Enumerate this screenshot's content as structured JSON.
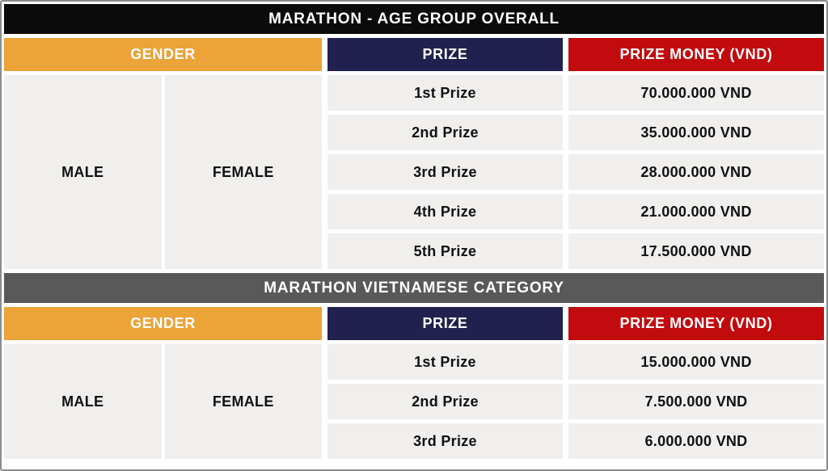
{
  "chart_data": [
    {
      "type": "table",
      "title": "MARATHON - AGE GROUP OVERALL",
      "headers": {
        "gender": "GENDER",
        "prize": "PRIZE",
        "money": "PRIZE MONEY (VND)"
      },
      "genders": {
        "male": "MALE",
        "female": "FEMALE"
      },
      "rows": [
        {
          "prize": "1st Prize",
          "money": "70.000.000 VND"
        },
        {
          "prize": "2nd Prize",
          "money": "35.000.000 VND"
        },
        {
          "prize": "3rd Prize",
          "money": "28.000.000 VND"
        },
        {
          "prize": "4th Prize",
          "money": "21.000.000 VND"
        },
        {
          "prize": "5th Prize",
          "money": "17.500.000 VND"
        }
      ]
    },
    {
      "type": "table",
      "title": "MARATHON VIETNAMESE CATEGORY",
      "headers": {
        "gender": "GENDER",
        "prize": "PRIZE",
        "money": "PRIZE MONEY (VND)"
      },
      "genders": {
        "male": "MALE",
        "female": "FEMALE"
      },
      "rows": [
        {
          "prize": "1st Prize",
          "money": "15.000.000 VND"
        },
        {
          "prize": "2nd Prize",
          "money": "7.500.000 VND"
        },
        {
          "prize": "3rd Prize",
          "money": "6.000.000 VND"
        }
      ]
    }
  ],
  "colors": {
    "section1_header_bg": "#0b0b0b",
    "section2_header_bg": "#595959",
    "gender_header_bg": "#eca338",
    "prize_header_bg": "#20214e",
    "money_header_bg": "#c20b0e",
    "cell_bg": "#f0efed",
    "header_text": "#ffffff",
    "cell_text": "#111111",
    "frame_border": "#8c8c8c",
    "background": "#ffffff"
  }
}
